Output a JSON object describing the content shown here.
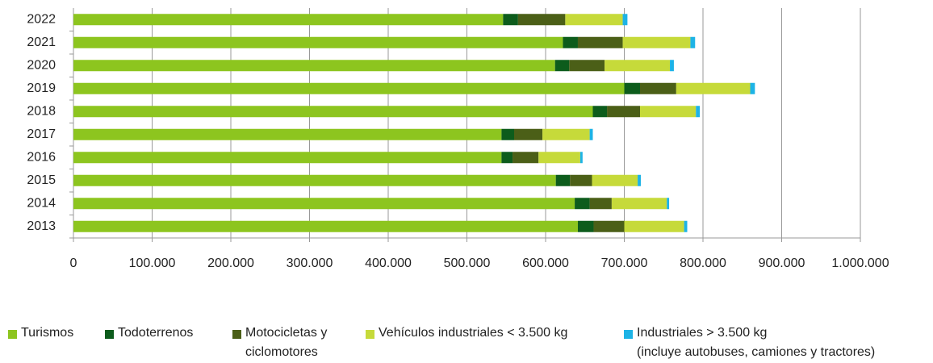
{
  "chart_data": {
    "type": "stacked-barh",
    "categories": [
      "2013",
      "2014",
      "2015",
      "2016",
      "2017",
      "2018",
      "2019",
      "2020",
      "2021",
      "2022"
    ],
    "series": [
      {
        "name": "Turismos",
        "color": "#8dc51f",
        "values": [
          641000,
          637000,
          613000,
          544000,
          544000,
          660000,
          700000,
          612000,
          622000,
          546000
        ]
      },
      {
        "name": "Todoterrenos",
        "color": "#0d5c1c",
        "values": [
          20000,
          19000,
          18000,
          14000,
          16000,
          18000,
          20000,
          18000,
          19000,
          19000
        ]
      },
      {
        "name": "Motocicletas y\nciclomotores",
        "color": "#4b5f17",
        "values": [
          39000,
          28000,
          28000,
          33000,
          36000,
          42000,
          46000,
          45000,
          57000,
          60000
        ]
      },
      {
        "name": "Vehículos industriales < 3.500 kg",
        "color": "#c6da3a",
        "values": [
          76000,
          70000,
          58000,
          53000,
          60000,
          71000,
          94000,
          83000,
          86000,
          73000
        ]
      },
      {
        "name": "Industriales > 3.500 kg\n(incluye autobuses, camiones y tractores)",
        "color": "#1db3e6",
        "values": [
          4000,
          3000,
          4000,
          3000,
          4000,
          5000,
          6000,
          5000,
          6000,
          6000
        ]
      }
    ],
    "xlim": [
      0,
      1000000
    ],
    "xticks": [
      0,
      {
        "value": 100000,
        "label": "100.000"
      },
      {
        "value": 200000,
        "label": "200.000"
      },
      {
        "value": 300000,
        "label": "300.000"
      },
      {
        "value": 400000,
        "label": "400.000"
      },
      {
        "value": 500000,
        "label": "500.000"
      },
      {
        "value": 600000,
        "label": "600.000"
      },
      {
        "value": 700000,
        "label": "700.000"
      },
      {
        "value": 800000,
        "label": "800.000"
      },
      {
        "value": 900000,
        "label": "900.000"
      },
      {
        "value": 1000000,
        "label": "1.000.000"
      }
    ],
    "grid": true
  }
}
